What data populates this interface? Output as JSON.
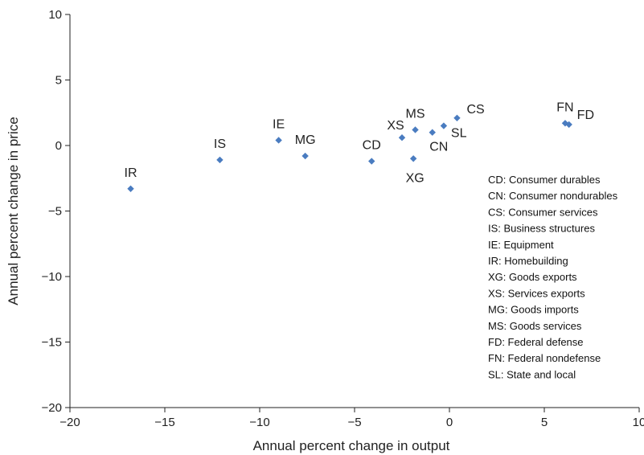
{
  "chart_data": {
    "type": "scatter",
    "title": "",
    "xlabel": "Annual percent change in output",
    "ylabel": "Annual percent change in price",
    "xlim": [
      -20,
      10
    ],
    "ylim": [
      -20,
      10
    ],
    "xticks": [
      -20,
      -15,
      -10,
      -5,
      0,
      5,
      10
    ],
    "yticks": [
      10,
      5,
      0,
      -5,
      -10,
      -15,
      -20
    ],
    "xtick_labels": [
      "−20",
      "−15",
      "−10",
      "−5",
      "0",
      "5",
      "10"
    ],
    "ytick_labels": [
      "10",
      "5",
      "0",
      "−5",
      "−10",
      "−15",
      "−20"
    ],
    "grid": false,
    "marker_color": "#4a7cc0",
    "points": [
      {
        "label": "IR",
        "x": -16.8,
        "y": -3.3,
        "label_pos": "above"
      },
      {
        "label": "IS",
        "x": -12.1,
        "y": -1.1,
        "label_pos": "above"
      },
      {
        "label": "IE",
        "x": -9.0,
        "y": 0.4,
        "label_pos": "above"
      },
      {
        "label": "MG",
        "x": -7.6,
        "y": -0.8,
        "label_pos": "above"
      },
      {
        "label": "CD",
        "x": -4.1,
        "y": -1.2,
        "label_pos": "above"
      },
      {
        "label": "XS",
        "x": -2.5,
        "y": 0.6,
        "label_pos": "above-left"
      },
      {
        "label": "XG",
        "x": -1.9,
        "y": -1.0,
        "label_pos": "below"
      },
      {
        "label": "MS",
        "x": -1.8,
        "y": 1.2,
        "label_pos": "above"
      },
      {
        "label": "CN",
        "x": -0.9,
        "y": 1.0,
        "label_pos": "below-right"
      },
      {
        "label": "SL",
        "x": -0.3,
        "y": 1.5,
        "label_pos": "right"
      },
      {
        "label": "CS",
        "x": 0.4,
        "y": 2.1,
        "label_pos": "above-right"
      },
      {
        "label": "FN",
        "x": 6.1,
        "y": 1.7,
        "label_pos": "above"
      },
      {
        "label": "FD",
        "x": 6.3,
        "y": 1.6,
        "label_pos": "right-up"
      }
    ],
    "legend_position": "bottom-right",
    "legend": [
      "CD: Consumer durables",
      "CN: Consumer nondurables",
      "CS: Consumer services",
      "IS: Business structures",
      "IE: Equipment",
      "IR: Homebuilding",
      "XG: Goods exports",
      "XS: Services exports",
      "MG: Goods imports",
      "MS: Goods services",
      "FD: Federal defense",
      "FN: Federal nondefense",
      "SL: State and local"
    ]
  }
}
